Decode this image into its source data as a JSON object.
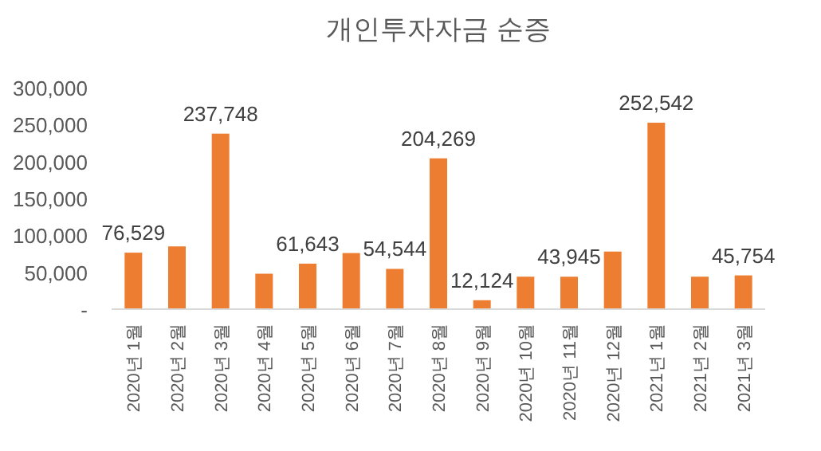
{
  "chart_data": {
    "type": "bar",
    "title": "개인투자자금 순증",
    "categories": [
      "2020년 1월",
      "2020년 2월",
      "2020년 3월",
      "2020년 4월",
      "2020년 5월",
      "2020년 6월",
      "2020년 7월",
      "2020년 8월",
      "2020년 9월",
      "2020년 10월",
      "2020년 11월",
      "2020년 12월",
      "2021년 1월",
      "2021년 2월",
      "2021년 3월"
    ],
    "values": [
      76529,
      85000,
      237748,
      48000,
      61643,
      76000,
      54544,
      204269,
      12124,
      44000,
      43945,
      78000,
      252542,
      44000,
      45754
    ],
    "value_labels": [
      "76,529",
      null,
      "237,748",
      null,
      "61,643",
      null,
      "54,544",
      "204,269",
      "12,124",
      null,
      "43,945",
      null,
      "252,542",
      null,
      "45,754"
    ],
    "color": "#ed7d31",
    "ylim": [
      0,
      300000
    ],
    "yticks": [
      {
        "value": 0,
        "label": "-"
      },
      {
        "value": 50000,
        "label": "50,000"
      },
      {
        "value": 100000,
        "label": "100,000"
      },
      {
        "value": 150000,
        "label": "150,000"
      },
      {
        "value": 200000,
        "label": "200,000"
      },
      {
        "value": 250000,
        "label": "250,000"
      },
      {
        "value": 300000,
        "label": "300,000"
      }
    ],
    "grid": false
  }
}
